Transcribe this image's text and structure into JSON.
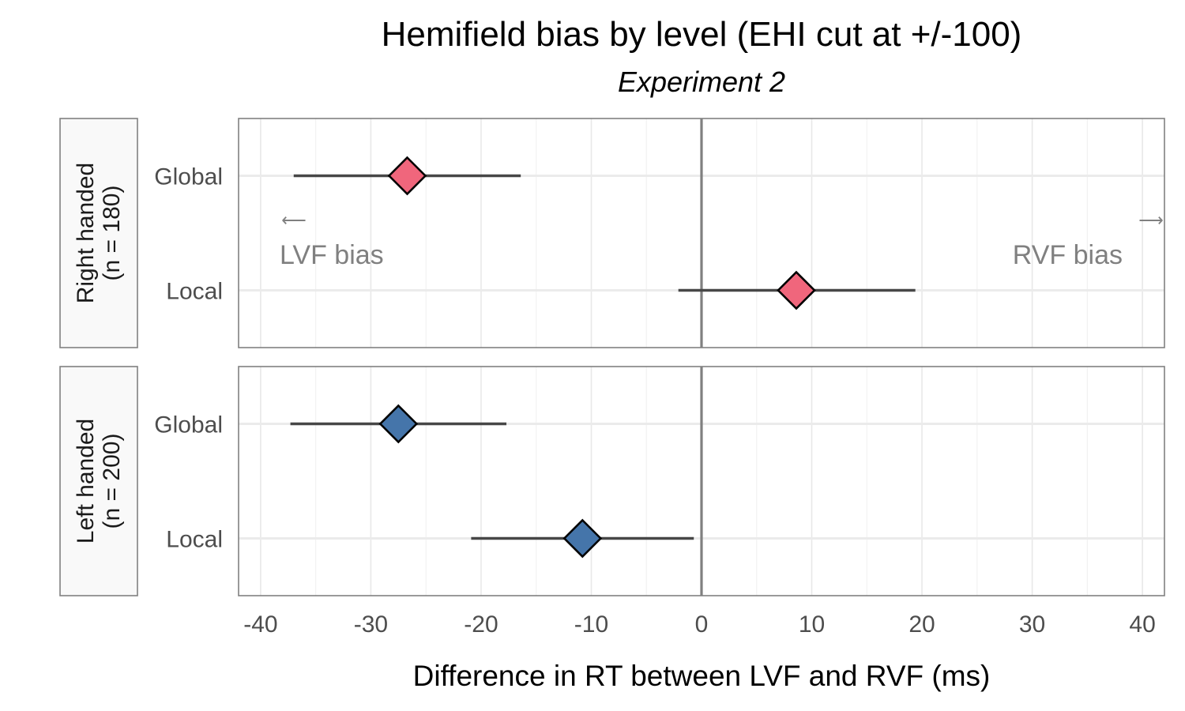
{
  "chart_data": {
    "type": "forest",
    "title": "Hemifield bias by level (EHI cut at +/-100)",
    "subtitle": "Experiment 2",
    "xlabel": "Difference in RT between LVF and RVF (ms)",
    "xlim": [
      -42,
      42
    ],
    "xticks": [
      -40,
      -30,
      -20,
      -10,
      0,
      10,
      20,
      30,
      40
    ],
    "xtick_labels": [
      "-40",
      "-30",
      "-20",
      "-10",
      "0",
      "10",
      "20",
      "30",
      "40"
    ],
    "grid": true,
    "reference_line": 0,
    "categories": [
      "Global",
      "Local"
    ],
    "panels": [
      {
        "strip_label_line1": "Right handed",
        "strip_label_line2": "(n = 180)",
        "color": "#f0667c",
        "points": [
          {
            "category": "Global",
            "estimate": -26.7,
            "lower": -37.0,
            "upper": -16.4
          },
          {
            "category": "Local",
            "estimate": 8.6,
            "lower": -2.1,
            "upper": 19.4
          }
        ],
        "annotations": [
          {
            "arrow": "⟵",
            "text": "LVF bias"
          },
          {
            "arrow": "⟶",
            "text": "RVF bias"
          }
        ]
      },
      {
        "strip_label_line1": "Left handed",
        "strip_label_line2": "(n = 200)",
        "color": "#4575aa",
        "points": [
          {
            "category": "Global",
            "estimate": -27.5,
            "lower": -37.3,
            "upper": -17.7
          },
          {
            "category": "Local",
            "estimate": -10.8,
            "lower": -20.9,
            "upper": -0.7
          }
        ],
        "annotations": []
      }
    ]
  }
}
